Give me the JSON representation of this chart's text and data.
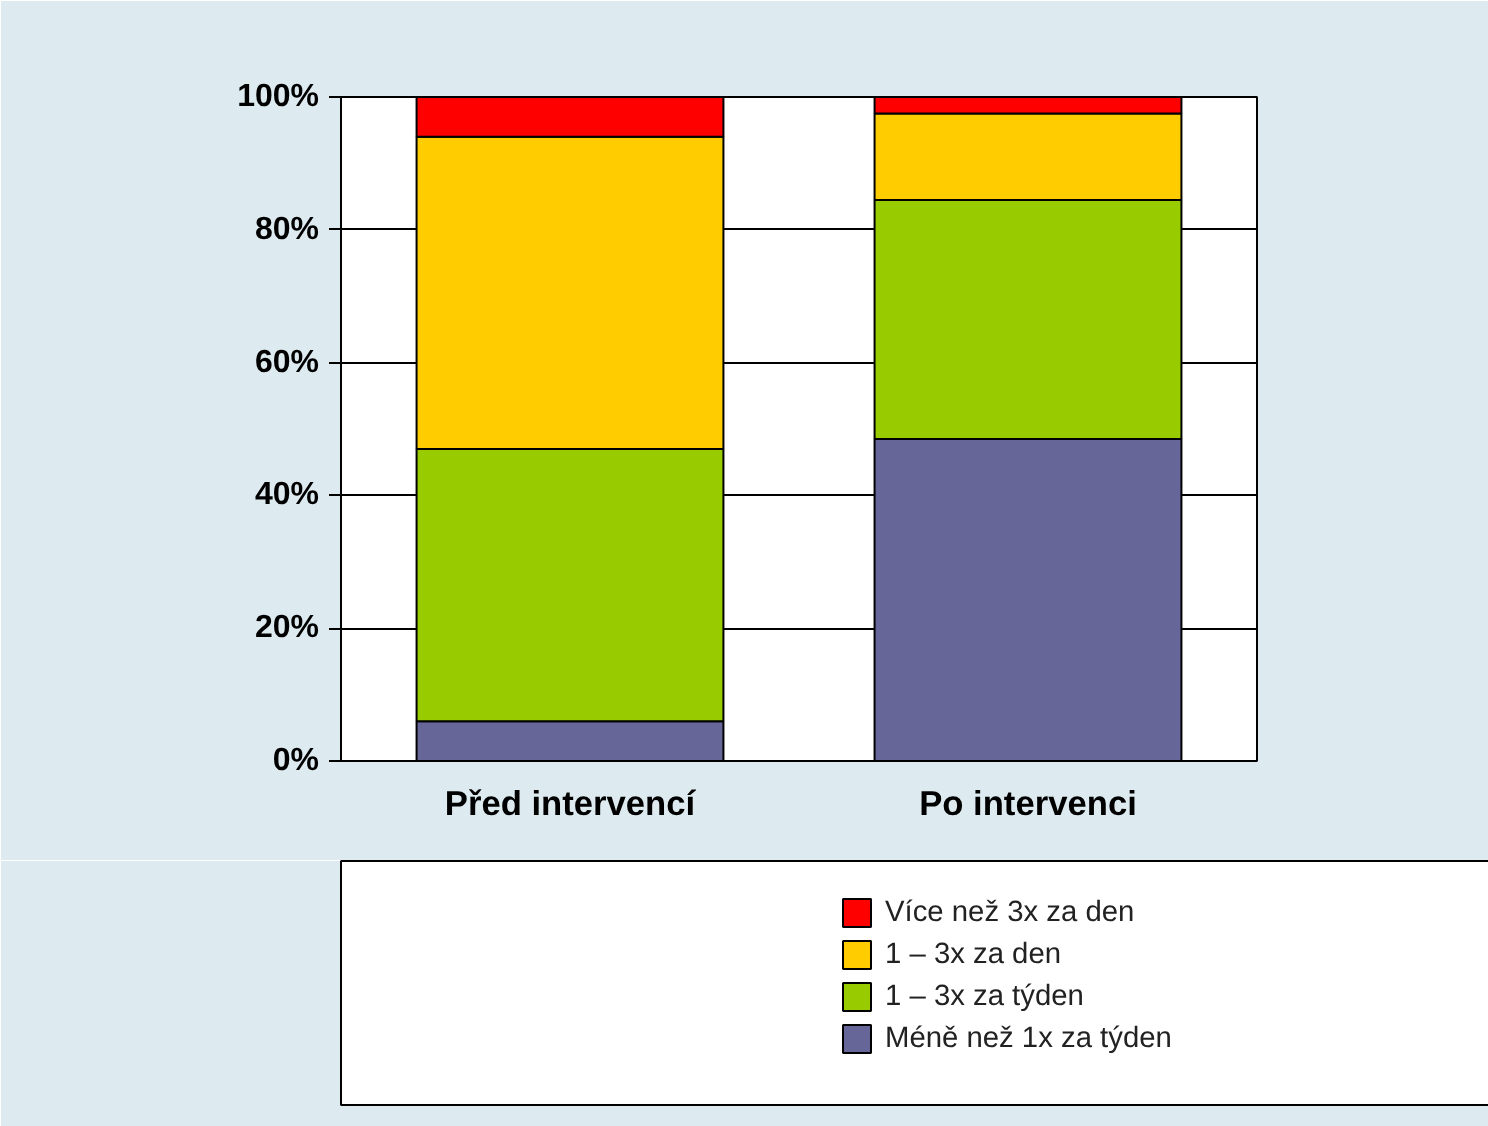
{
  "chart_data": {
    "type": "bar",
    "stacked": true,
    "categories": [
      "Před intervencí",
      "Po intervenci"
    ],
    "series": [
      {
        "name": "Méně než 1x za týden",
        "color": "#666699",
        "values": [
          6,
          48.5
        ]
      },
      {
        "name": "1 – 3x za týden",
        "color": "#99cc00",
        "values": [
          41,
          36
        ]
      },
      {
        "name": "1 – 3x za den",
        "color": "#ffcc00",
        "values": [
          47,
          13
        ]
      },
      {
        "name": "Více než 3x za den",
        "color": "#ff0000",
        "values": [
          6,
          2.5
        ]
      }
    ],
    "ylim": [
      0,
      100
    ],
    "yticks": [
      {
        "value": 0,
        "label": "0%"
      },
      {
        "value": 20,
        "label": "20%"
      },
      {
        "value": 40,
        "label": "40%"
      },
      {
        "value": 60,
        "label": "60%"
      },
      {
        "value": 80,
        "label": "80%"
      },
      {
        "value": 100,
        "label": "100%"
      }
    ],
    "grid": "y",
    "legend": "bottom"
  }
}
